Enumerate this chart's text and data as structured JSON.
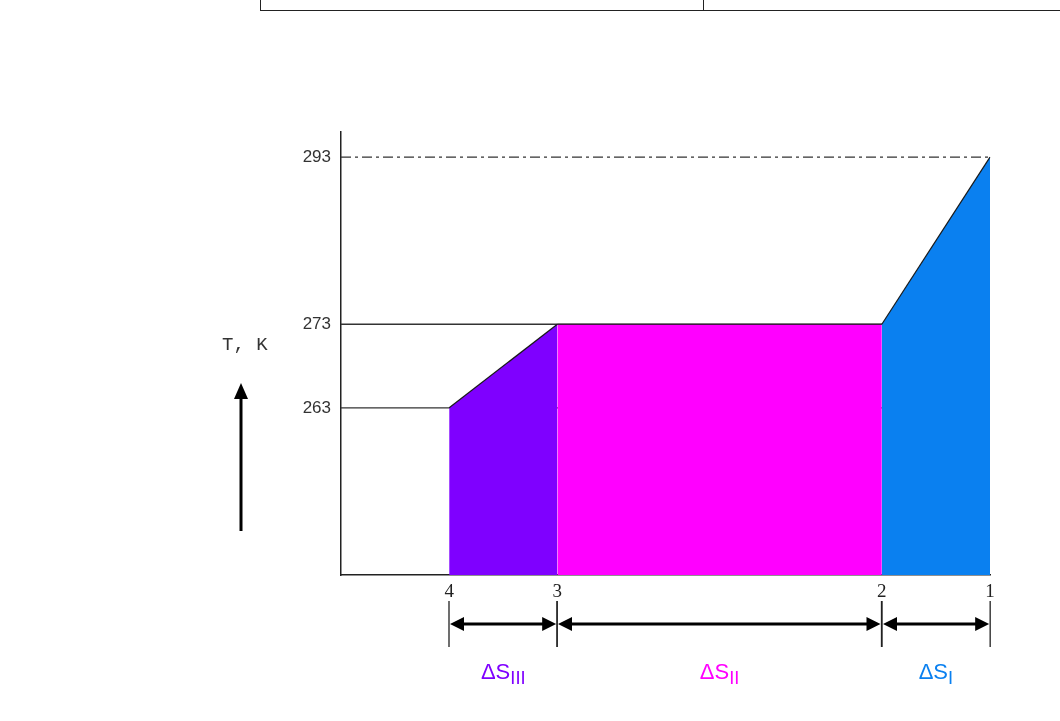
{
  "chart_data": {
    "type": "area",
    "ylabel": "T, K",
    "categories": [
      null,
      "4",
      "3",
      null,
      null,
      "2",
      "1"
    ],
    "series": [
      {
        "name": "ΔS$_{III}$",
        "color": "#7f00ff",
        "values": [
          null,
          263,
          273,
          null,
          null,
          null,
          null
        ]
      },
      {
        "name": "ΔS$_{II}$",
        "color": "#ff00ff",
        "values": [
          null,
          null,
          273,
          273,
          273,
          273,
          null
        ]
      },
      {
        "name": "ΔS$_{I}$",
        "color": "#0a80f0",
        "values": [
          null,
          null,
          null,
          null,
          null,
          273,
          293
        ]
      }
    ],
    "ylim": [
      243,
      296
    ],
    "yticks": [
      263,
      273,
      293
    ],
    "ref_lines": [
      {
        "axis": "y",
        "value": 293,
        "line_style": "dashed",
        "color": "#333333"
      },
      {
        "axis": "y",
        "value": 273,
        "color": "#333333"
      },
      {
        "axis": "y",
        "value": 263,
        "color": "#333333"
      }
    ],
    "grid": false,
    "legend": false
  }
}
